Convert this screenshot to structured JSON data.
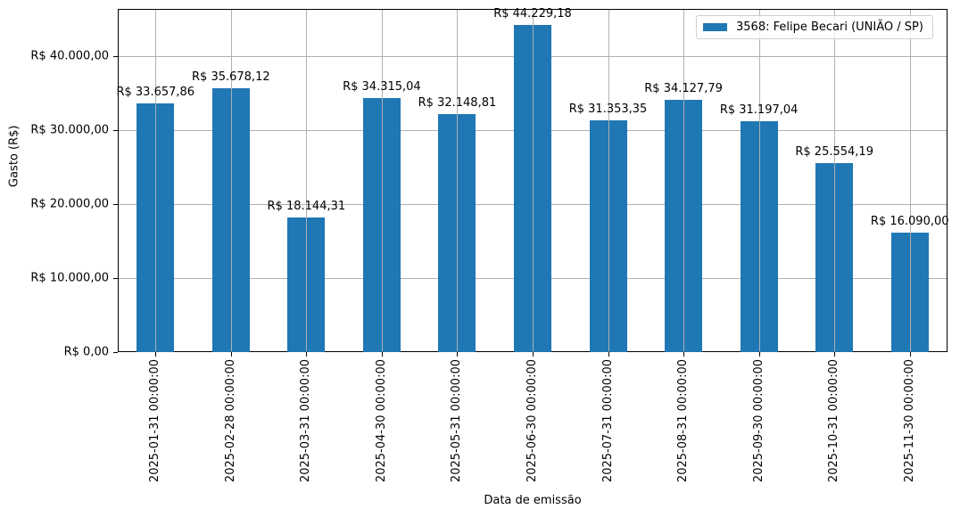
{
  "chart_data": {
    "type": "bar",
    "title": "",
    "xlabel": "Data de emissão",
    "ylabel": "Gasto (R$)",
    "ylim": [
      0,
      46400
    ],
    "grid": true,
    "legend_position": "upper right",
    "categories": [
      "2025-01-31 00:00:00",
      "2025-02-28 00:00:00",
      "2025-03-31 00:00:00",
      "2025-04-30 00:00:00",
      "2025-05-31 00:00:00",
      "2025-06-30 00:00:00",
      "2025-07-31 00:00:00",
      "2025-08-31 00:00:00",
      "2025-09-30 00:00:00",
      "2025-10-31 00:00:00",
      "2025-11-30 00:00:00"
    ],
    "series": [
      {
        "name": "3568: Felipe Becari (UNIÃO / SP)",
        "color": "#1f77b4",
        "values": [
          33657.86,
          35678.12,
          18144.31,
          34315.04,
          32148.81,
          44229.18,
          31353.35,
          34127.79,
          31197.04,
          25554.19,
          16090.0
        ],
        "labels": [
          "R$ 33.657,86",
          "R$ 35.678,12",
          "R$ 18.144,31",
          "R$ 34.315,04",
          "R$ 32.148,81",
          "R$ 44.229,18",
          "R$ 31.353,35",
          "R$ 34.127,79",
          "R$ 31.197,04",
          "R$ 25.554,19",
          "R$ 16.090,00"
        ]
      }
    ],
    "yticks": [
      {
        "value": 0,
        "label": "R$ 0,00"
      },
      {
        "value": 10000,
        "label": "R$ 10.000,00"
      },
      {
        "value": 20000,
        "label": "R$ 20.000,00"
      },
      {
        "value": 30000,
        "label": "R$ 30.000,00"
      },
      {
        "value": 40000,
        "label": "R$ 40.000,00"
      }
    ]
  },
  "legend": {
    "label": "3568: Felipe Becari (UNIÃO / SP)",
    "color": "#1f77b4"
  },
  "axes": {
    "xlabel": "Data de emissão",
    "ylabel": "Gasto (R$)"
  }
}
